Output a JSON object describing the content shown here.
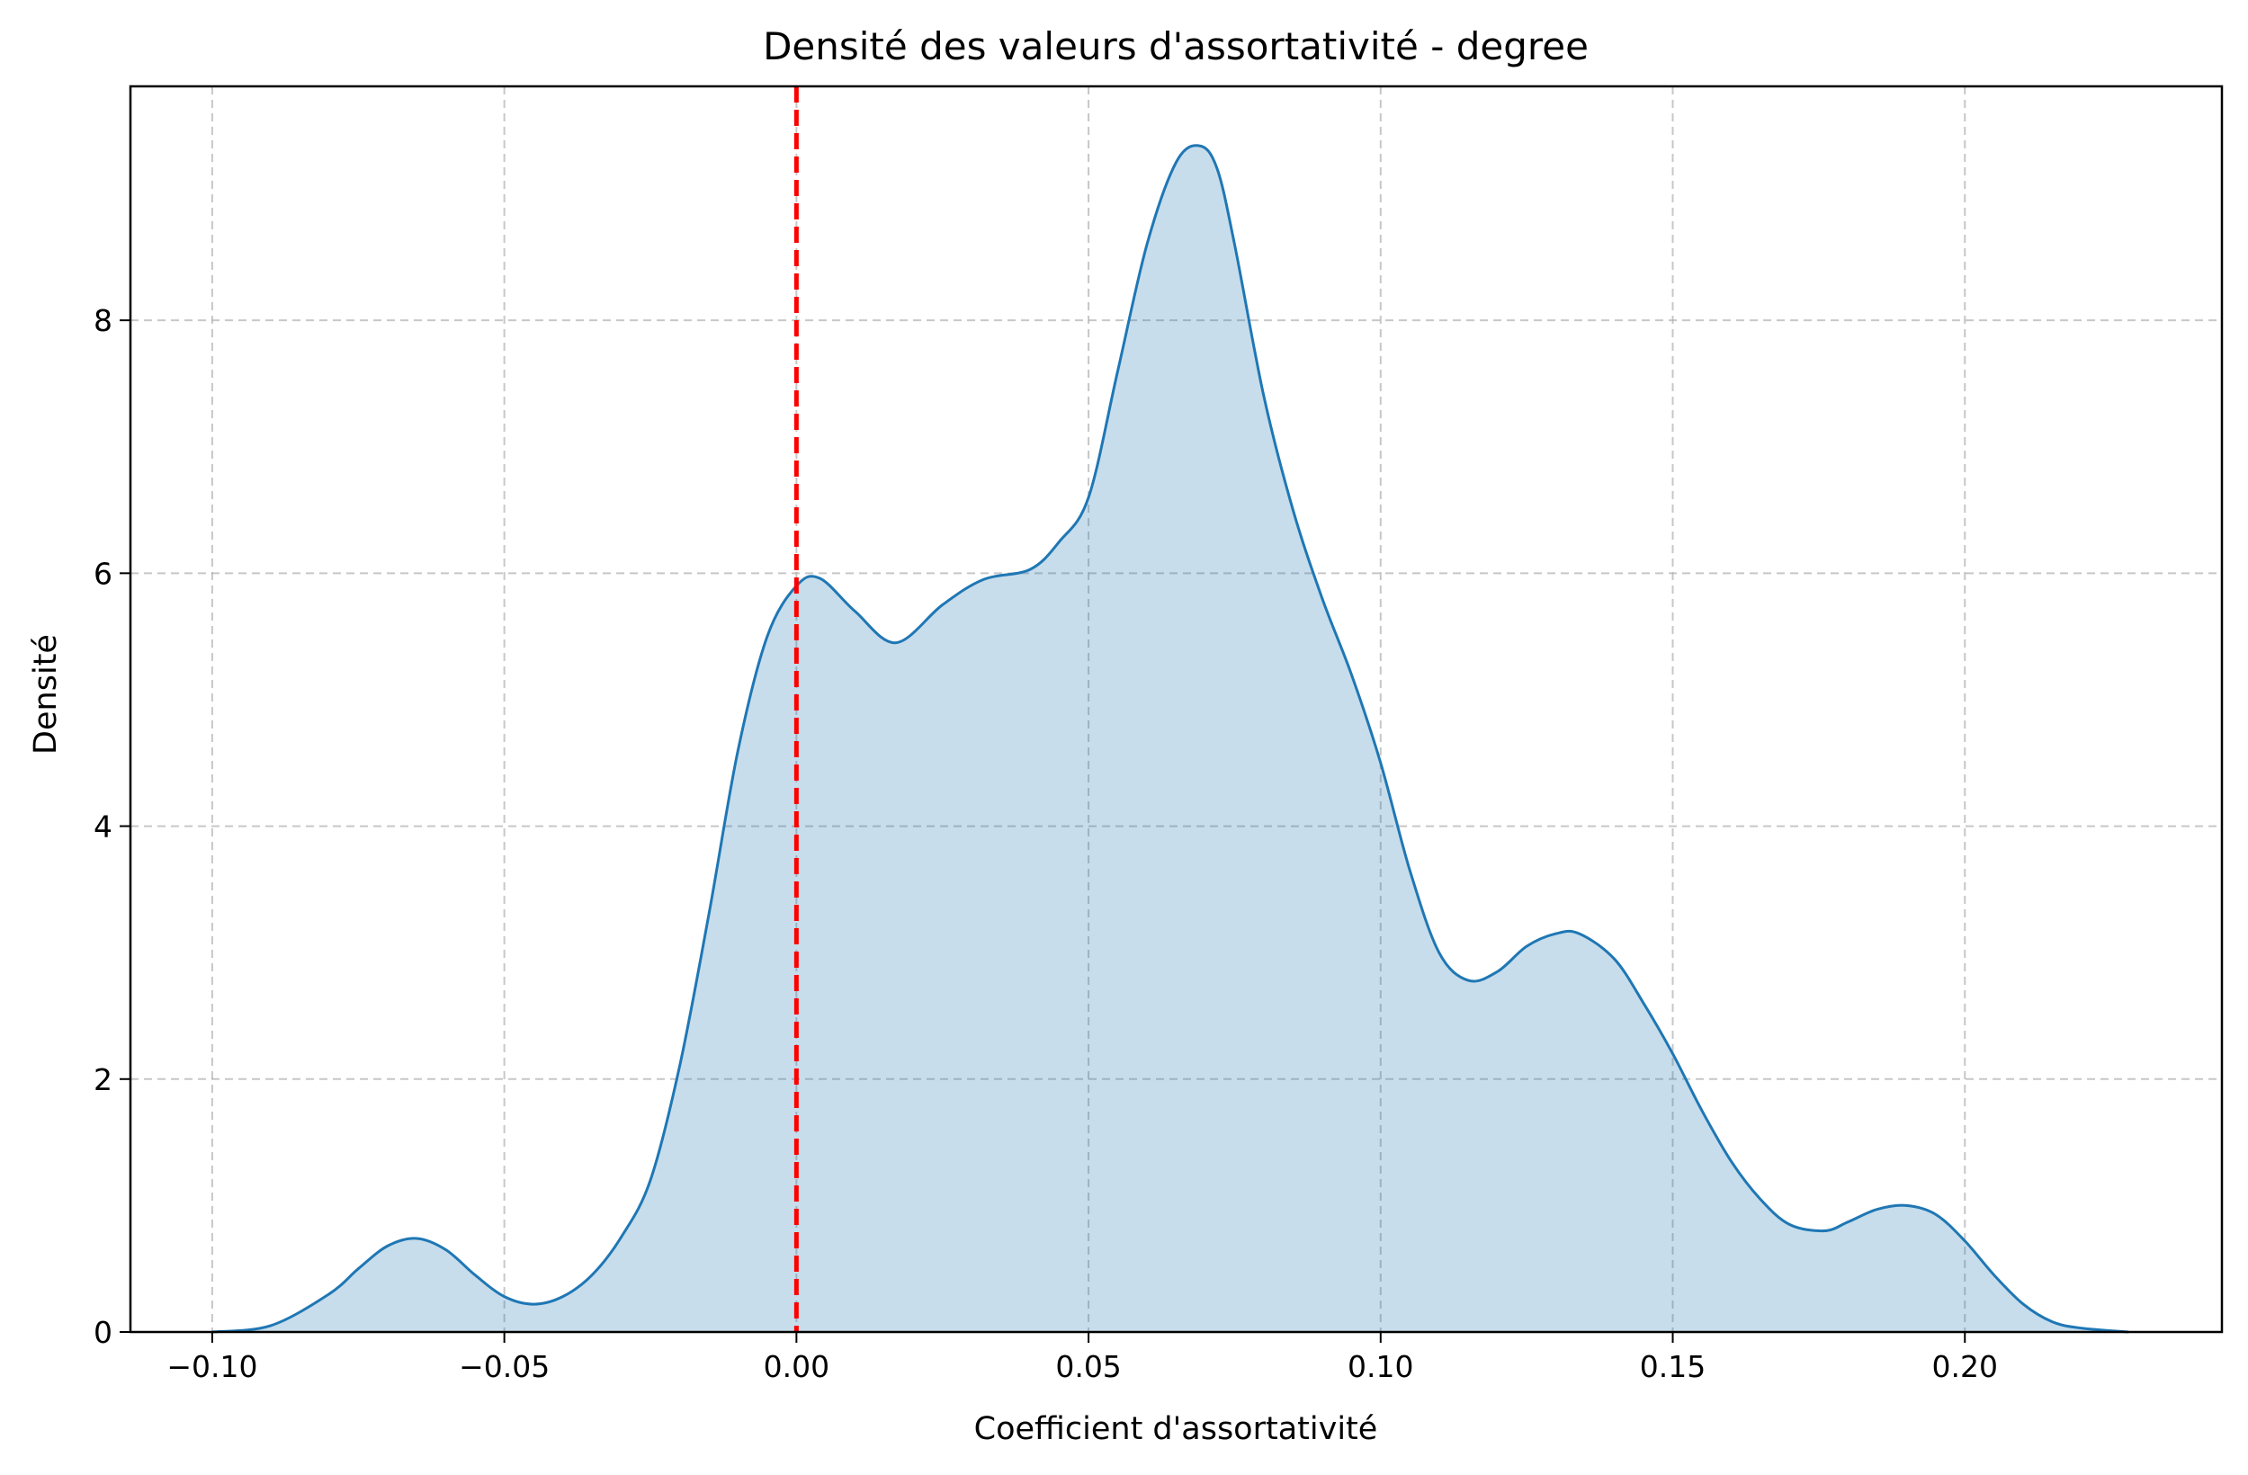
{
  "chart_data": {
    "type": "area",
    "title": "Densité des valeurs d'assortativité - degree",
    "xlabel": "Coefficient d'assortativité",
    "ylabel": "Densité",
    "xlim": [
      -0.114,
      0.244
    ],
    "ylim": [
      0,
      9.85
    ],
    "xticks": [
      -0.1,
      -0.05,
      0.0,
      0.05,
      0.1,
      0.15,
      0.2
    ],
    "xtick_labels": [
      "−0.10",
      "−0.05",
      "0.00",
      "0.05",
      "0.10",
      "0.15",
      "0.20"
    ],
    "yticks": [
      0,
      2,
      4,
      6,
      8
    ],
    "ytick_labels": [
      "0",
      "2",
      "4",
      "6",
      "8"
    ],
    "grid": true,
    "series": [
      {
        "x": [
          -0.1,
          -0.09,
          -0.08,
          -0.075,
          -0.07,
          -0.065,
          -0.06,
          -0.055,
          -0.05,
          -0.045,
          -0.04,
          -0.035,
          -0.03,
          -0.025,
          -0.02,
          -0.015,
          -0.01,
          -0.005,
          0.0,
          0.004,
          0.01,
          0.017,
          0.025,
          0.032,
          0.04,
          0.045,
          0.05,
          0.055,
          0.06,
          0.065,
          0.069,
          0.072,
          0.075,
          0.08,
          0.085,
          0.09,
          0.095,
          0.1,
          0.105,
          0.11,
          0.115,
          0.12,
          0.125,
          0.13,
          0.134,
          0.14,
          0.145,
          0.15,
          0.155,
          0.16,
          0.165,
          0.17,
          0.176,
          0.18,
          0.185,
          0.19,
          0.195,
          0.2,
          0.205,
          0.21,
          0.215,
          0.22,
          0.228
        ],
        "y": [
          0.0,
          0.05,
          0.3,
          0.5,
          0.68,
          0.74,
          0.65,
          0.45,
          0.28,
          0.22,
          0.28,
          0.45,
          0.75,
          1.2,
          2.1,
          3.3,
          4.6,
          5.5,
          5.9,
          5.96,
          5.7,
          5.45,
          5.75,
          5.95,
          6.03,
          6.25,
          6.6,
          7.6,
          8.6,
          9.25,
          9.38,
          9.2,
          8.6,
          7.4,
          6.5,
          5.8,
          5.2,
          4.5,
          3.65,
          3.0,
          2.78,
          2.85,
          3.05,
          3.15,
          3.15,
          2.95,
          2.6,
          2.2,
          1.75,
          1.35,
          1.05,
          0.85,
          0.8,
          0.87,
          0.97,
          1.0,
          0.93,
          0.72,
          0.45,
          0.22,
          0.08,
          0.03,
          0.0
        ],
        "line_color": "#1f77b4",
        "fill_color": "#1f77b4",
        "fill_opacity": 0.25
      }
    ],
    "reference_line": {
      "x": 0.0,
      "color": "#ff0000",
      "style": "dashed"
    }
  }
}
